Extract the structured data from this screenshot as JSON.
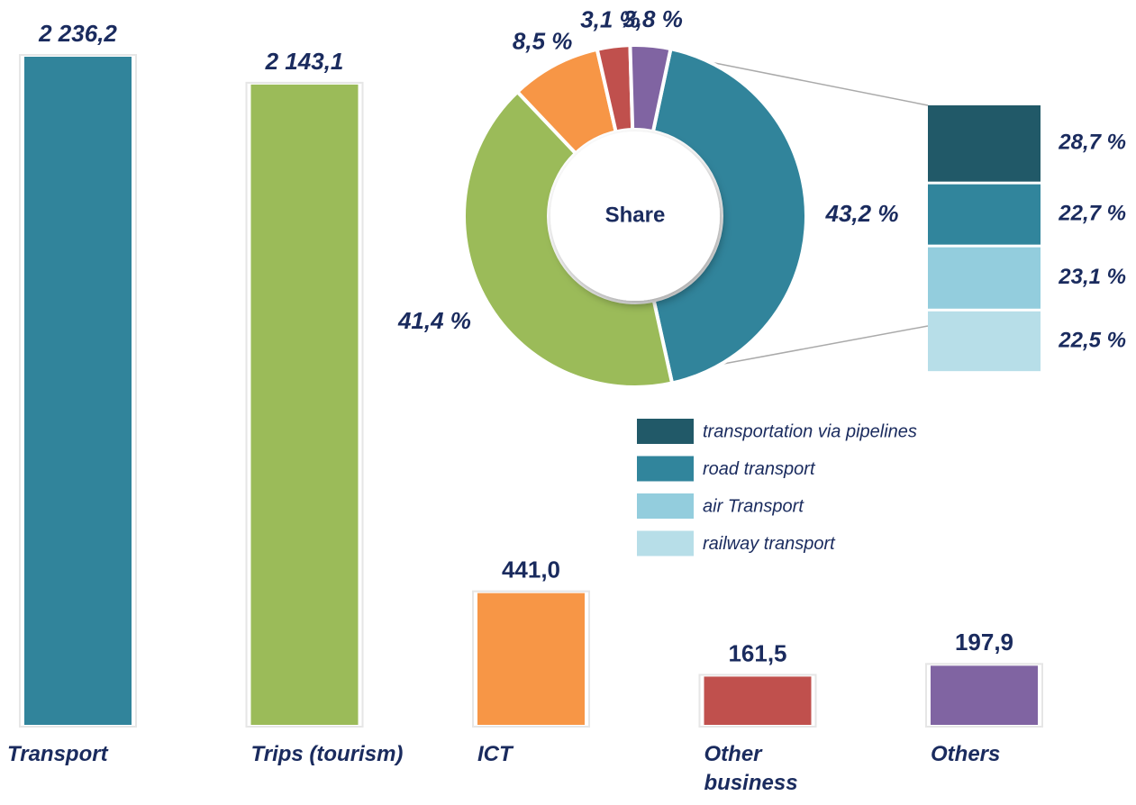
{
  "chart_data": [
    {
      "type": "bar",
      "categories": [
        "Transport",
        "Trips (tourism)",
        "ICT",
        "Other business",
        "Others"
      ],
      "values": [
        2236.2,
        2143.1,
        441.0,
        161.5,
        197.9
      ],
      "value_labels": [
        "2 236,2",
        "2 143,1",
        "441,0",
        "161,5",
        "197,9"
      ],
      "colors": [
        "#31849b",
        "#9bbb59",
        "#f79646",
        "#c0504d",
        "#8064a2"
      ]
    },
    {
      "type": "donut",
      "center_label": "Share",
      "values": [
        43.2,
        41.4,
        8.5,
        3.1,
        3.8
      ],
      "value_labels": [
        "43,2 %",
        "41,4 %",
        "8,5 %",
        "3,1 %",
        "3,8 %"
      ],
      "colors": [
        "#31849b",
        "#9bbb59",
        "#f79646",
        "#c0504d",
        "#8064a2"
      ]
    },
    {
      "type": "stacked_bar",
      "series": [
        {
          "name": "transportation via pipelines",
          "color": "#215968",
          "values": [
            28.7
          ],
          "value_labels": [
            "28,7 %"
          ]
        },
        {
          "name": "road transport",
          "color": "#31859c",
          "values": [
            22.7
          ],
          "value_labels": [
            "22,7 %"
          ]
        },
        {
          "name": "air Transport",
          "color": "#93cddd",
          "values": [
            23.1
          ],
          "value_labels": [
            "23,1 %"
          ]
        },
        {
          "name": "railway transport",
          "color": "#b7dee8",
          "values": [
            22.5
          ],
          "value_labels": [
            "22,5 %"
          ]
        }
      ]
    }
  ]
}
